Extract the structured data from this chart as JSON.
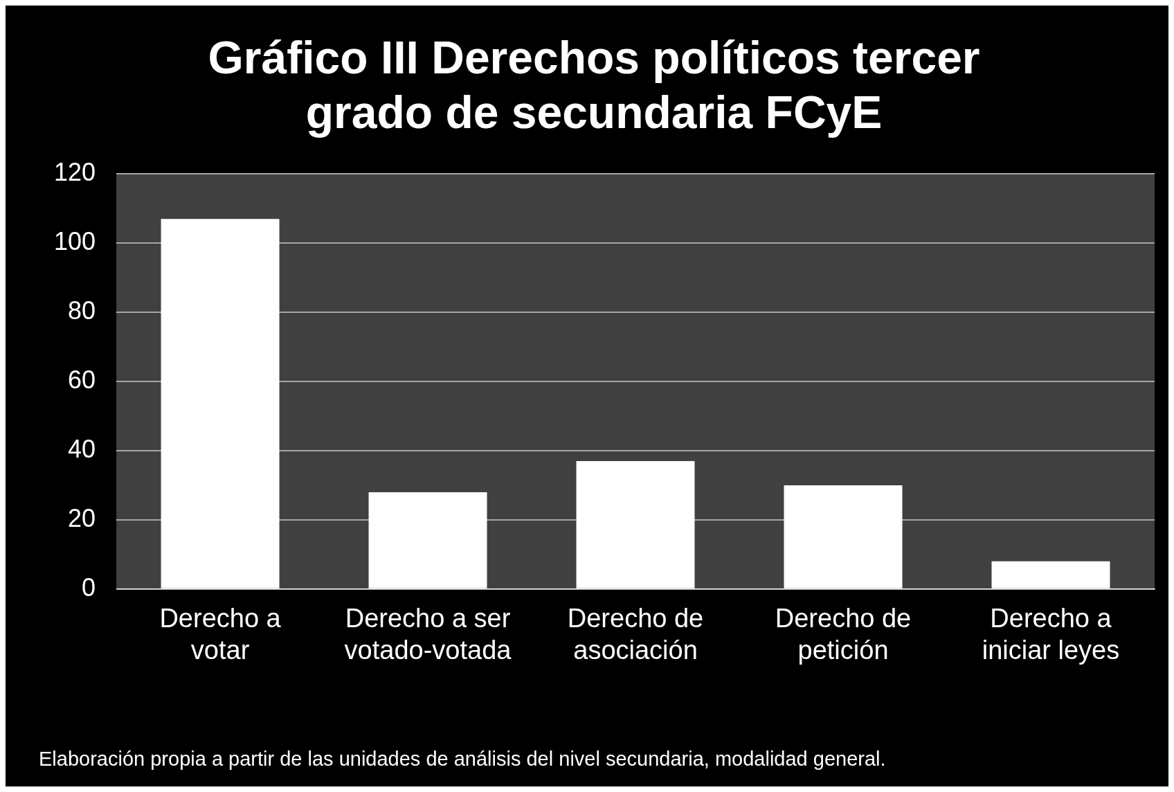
{
  "chart_data": {
    "type": "bar",
    "title": "Gráfico III Derechos políticos tercer grado de secundaria FCyE",
    "categories": [
      "Derecho a votar",
      "Derecho a ser votado-votada",
      "Derecho de asociación",
      "Derecho de petición",
      "Derecho a iniciar leyes"
    ],
    "values": [
      107,
      28,
      37,
      30,
      8
    ],
    "color": "#ffffff",
    "ylim": [
      0,
      120
    ],
    "yticks": [
      0,
      20,
      40,
      60,
      80,
      100,
      120
    ],
    "grid": "y",
    "annotations": [
      "Elaboración propia a partir de las unidades de análisis del nivel secundaria, modalidad general."
    ]
  }
}
